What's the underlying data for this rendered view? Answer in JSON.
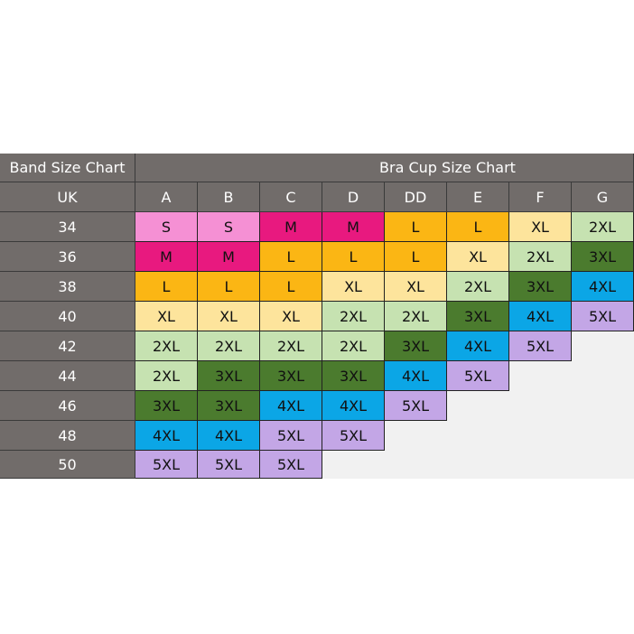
{
  "table": {
    "band_header": "Band Size Chart",
    "cup_header": "Bra Cup Size Chart",
    "region_header": "UK",
    "cups": [
      "A",
      "B",
      "C",
      "D",
      "DD",
      "E",
      "F",
      "G"
    ],
    "rows": [
      {
        "band": "34",
        "sizes": [
          "S",
          "S",
          "M",
          "M",
          "L",
          "L",
          "XL",
          "2XL"
        ]
      },
      {
        "band": "36",
        "sizes": [
          "M",
          "M",
          "L",
          "L",
          "L",
          "XL",
          "2XL",
          "3XL"
        ]
      },
      {
        "band": "38",
        "sizes": [
          "L",
          "L",
          "L",
          "XL",
          "XL",
          "2XL",
          "3XL",
          "4XL"
        ]
      },
      {
        "band": "40",
        "sizes": [
          "XL",
          "XL",
          "XL",
          "2XL",
          "2XL",
          "3XL",
          "4XL",
          "5XL"
        ]
      },
      {
        "band": "42",
        "sizes": [
          "2XL",
          "2XL",
          "2XL",
          "2XL",
          "3XL",
          "4XL",
          "5XL"
        ]
      },
      {
        "band": "44",
        "sizes": [
          "2XL",
          "3XL",
          "3XL",
          "3XL",
          "4XL",
          "5XL"
        ]
      },
      {
        "band": "46",
        "sizes": [
          "3XL",
          "3XL",
          "4XL",
          "4XL",
          "5XL"
        ]
      },
      {
        "band": "48",
        "sizes": [
          "4XL",
          "4XL",
          "5XL",
          "5XL"
        ]
      },
      {
        "band": "50",
        "sizes": [
          "5XL",
          "5XL",
          "5XL"
        ]
      }
    ],
    "palette": {
      "S": "#f590d4",
      "M": "#e8197f",
      "L": "#fbb614",
      "XL": "#fde49c",
      "2XL": "#c6e2b1",
      "3XL": "#4b7b2e",
      "4XL": "#0ba6e6",
      "5XL": "#c3a6e6"
    }
  }
}
